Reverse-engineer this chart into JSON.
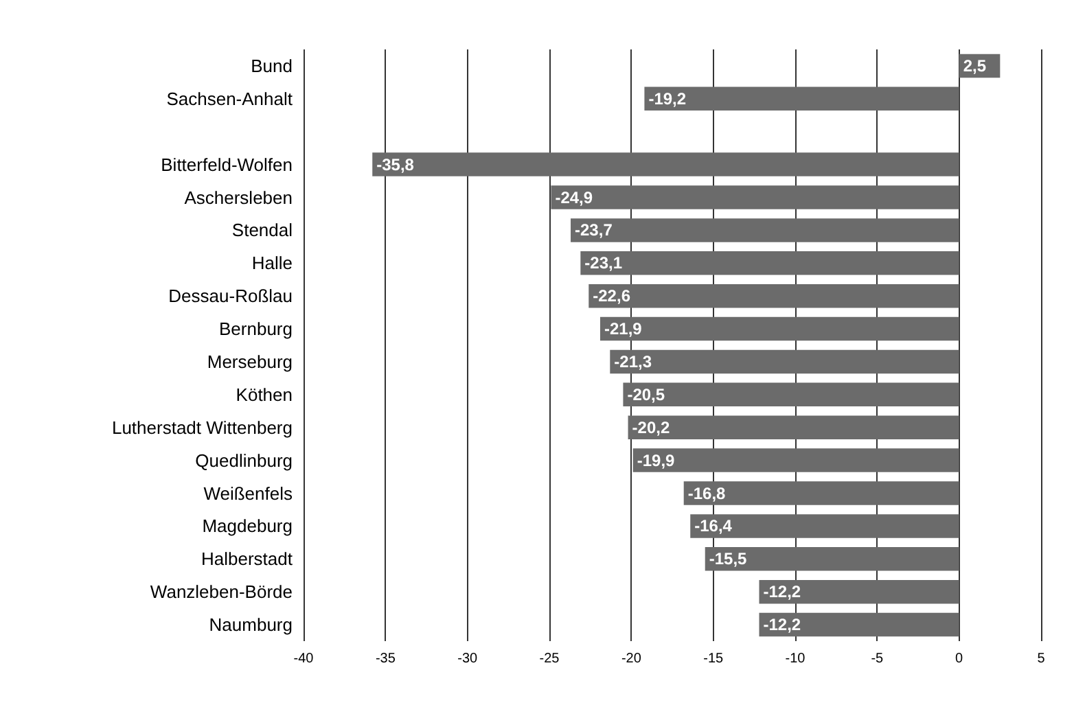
{
  "chart_data": {
    "type": "bar",
    "orientation": "horizontal",
    "categories": [
      "Bund",
      "Sachsen-Anhalt",
      null,
      "Bitterfeld-Wolfen",
      "Aschersleben",
      "Stendal",
      "Halle",
      "Dessau-Roßlau",
      "Bernburg",
      "Merseburg",
      "Köthen",
      "Lutherstadt Wittenberg",
      "Quedlinburg",
      "Weißenfels",
      "Magdeburg",
      "Halberstadt",
      "Wanzleben-Börde",
      "Naumburg"
    ],
    "values": [
      2.5,
      -19.2,
      null,
      -35.8,
      -24.9,
      -23.7,
      -23.1,
      -22.6,
      -21.9,
      -21.3,
      -20.5,
      -20.2,
      -19.9,
      -16.8,
      -16.4,
      -15.5,
      -12.2,
      -12.2
    ],
    "value_labels": [
      "2,5",
      "-19,2",
      null,
      "-35,8",
      "-24,9",
      "-23,7",
      "-23,1",
      "-22,6",
      "-21,9",
      "-21,3",
      "-20,5",
      "-20,2",
      "-19,9",
      "-16,8",
      "-16,4",
      "-15,5",
      "-12,2",
      "-12,2"
    ],
    "color": "#6b6b6b",
    "xlim": [
      -40,
      5
    ],
    "xticks": [
      -40,
      -35,
      -30,
      -25,
      -20,
      -15,
      -10,
      -5,
      0,
      5
    ],
    "grid": "x"
  }
}
